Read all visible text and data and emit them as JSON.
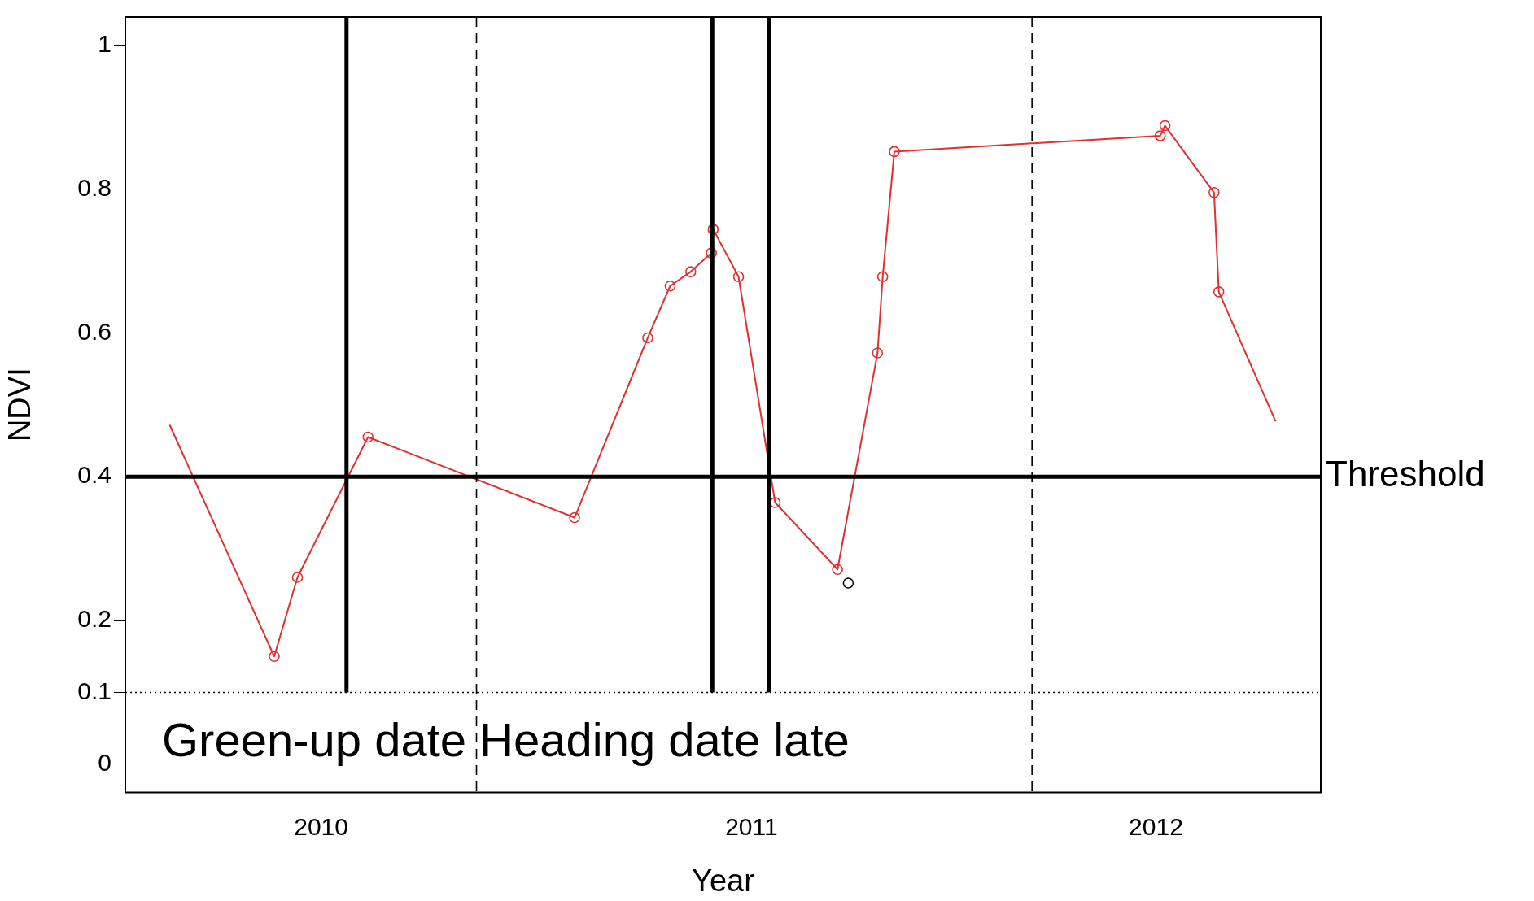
{
  "chart_data": {
    "type": "line",
    "xlabel": "Year",
    "ylabel": "NDVI",
    "xlim": [
      2009.545,
      2012.323
    ],
    "xticks": [
      {
        "value": 2010,
        "label": "2010"
      },
      {
        "value": 2011,
        "label": "2011"
      },
      {
        "value": 2011.94,
        "label": "2012"
      }
    ],
    "ylim": [
      -0.039,
      1.039
    ],
    "yticks": [
      0,
      0.1,
      0.2,
      0.4,
      0.6,
      0.8,
      1
    ],
    "series": [
      {
        "type": "line",
        "color": "#e03030",
        "marker": "none",
        "x": [
          2009.648,
          2009.891,
          2009.945,
          2010.109,
          2010.589,
          2010.759,
          2010.811,
          2010.859,
          2010.907,
          2010.911,
          2010.97,
          2011.055,
          2011.2,
          2011.293,
          2011.305,
          2011.332,
          2011.95,
          2011.961,
          2012.075,
          2012.086,
          2012.218
        ],
        "values": [
          0.472,
          0.15,
          0.26,
          0.455,
          0.343,
          0.593,
          0.665,
          0.685,
          0.711,
          0.744,
          0.678,
          0.364,
          0.271,
          0.572,
          0.678,
          0.852,
          0.874,
          0.888,
          0.795,
          0.657,
          0.477
        ]
      },
      {
        "type": "scatter",
        "color": "#e03030",
        "marker": "circle",
        "x": [
          2009.891,
          2009.945,
          2010.109,
          2010.589,
          2010.759,
          2010.811,
          2010.859,
          2010.907,
          2010.911,
          2010.97,
          2011.055,
          2011.2,
          2011.293,
          2011.305,
          2011.332,
          2011.95,
          2011.961,
          2012.075,
          2012.086
        ],
        "values": [
          0.15,
          0.26,
          0.455,
          0.343,
          0.593,
          0.665,
          0.685,
          0.711,
          0.744,
          0.678,
          0.364,
          0.271,
          0.572,
          0.678,
          0.852,
          0.874,
          0.888,
          0.795,
          0.657
        ]
      },
      {
        "type": "scatter",
        "color": "#000000",
        "marker": "circle",
        "x": [
          2011.225
        ],
        "values": [
          0.252
        ]
      }
    ],
    "ref_lines": [
      {
        "axis": "y",
        "value": 0.4,
        "label": "Threshold",
        "color": "#000000",
        "line_style": "solid"
      },
      {
        "axis": "y",
        "value": 0.1,
        "color": "#000000",
        "line_style": "dotted"
      },
      {
        "axis": "x",
        "value": 2010.059,
        "color": "#000000",
        "line_style": "solid"
      },
      {
        "axis": "x",
        "value": 2010.909,
        "color": "#000000",
        "line_style": "solid"
      },
      {
        "axis": "x",
        "value": 2011.041,
        "color": "#000000",
        "line_style": "solid"
      },
      {
        "axis": "x",
        "value": 2010.361,
        "color": "#000000",
        "line_style": "dashed"
      },
      {
        "axis": "x",
        "value": 2011.652,
        "color": "#000000",
        "line_style": "dashed"
      }
    ],
    "annotations": [
      "Green-up date Heading date late"
    ],
    "grid": false,
    "legend": false
  }
}
